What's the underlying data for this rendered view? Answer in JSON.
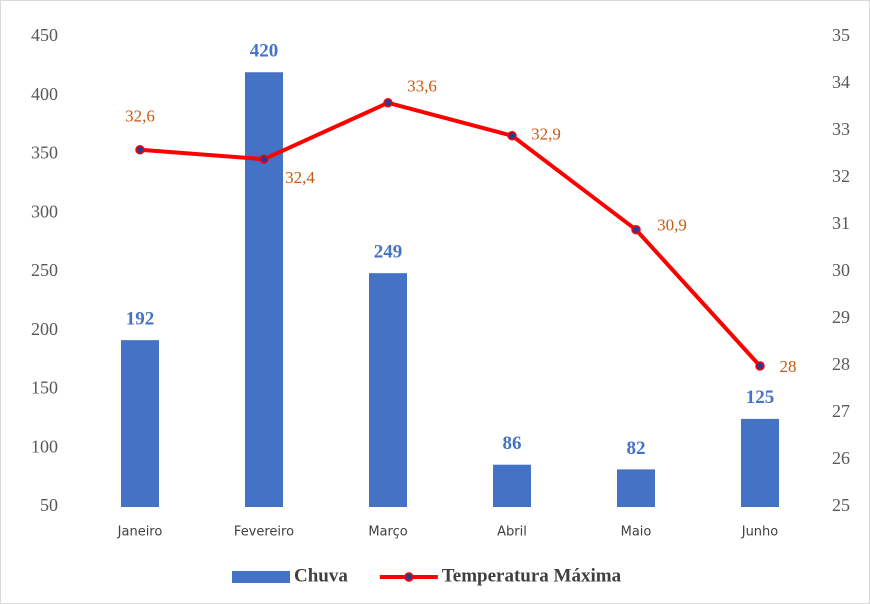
{
  "chart_data": {
    "type": "bar-line",
    "categories": [
      "Janeiro",
      "Fevereiro",
      "Março",
      "Abril",
      "Maio",
      "Junho"
    ],
    "series": [
      {
        "name": "Chuva",
        "type": "bar",
        "color": "#4472c4",
        "values": [
          192,
          420,
          249,
          86,
          82,
          125
        ]
      },
      {
        "name": "Temperatura Máxima",
        "type": "line",
        "axis": "y2",
        "color": "#ff0000",
        "marker_color": "#2e3a8c",
        "values": [
          32.6,
          32.4,
          33.6,
          32.9,
          30.9,
          28
        ],
        "value_labels": [
          "32,6",
          "32,4",
          "33,6",
          "32,9",
          "30,9",
          "28"
        ]
      }
    ],
    "ylim": [
      50,
      450
    ],
    "yticks": [
      50,
      100,
      150,
      200,
      250,
      300,
      350,
      400,
      450
    ],
    "y2lim": [
      25,
      35
    ],
    "y2ticks": [
      25,
      26,
      27,
      28,
      29,
      30,
      31,
      32,
      33,
      34,
      35
    ],
    "grid": false,
    "legend": "bottom"
  }
}
